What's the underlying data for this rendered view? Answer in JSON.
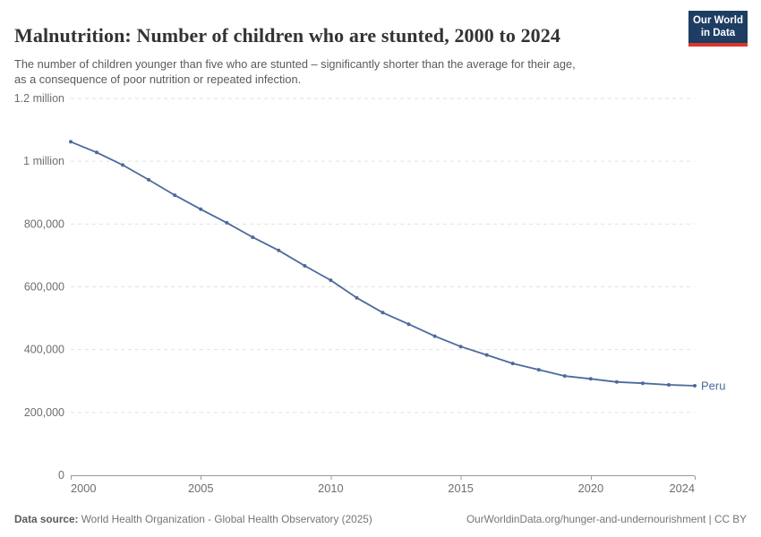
{
  "header": {
    "title": "Malnutrition: Number of children who are stunted, 2000 to 2024",
    "subtitle_lines": [
      "The number of children younger than five who are stunted – significantly shorter than the average for their age,",
      "as a consequence of poor nutrition or repeated infection."
    ],
    "logo": {
      "line1": "Our World",
      "line2": "in Data"
    }
  },
  "footer": {
    "source_label": "Data source:",
    "source_text": " World Health Organization - Global Health Observatory (2025)",
    "attribution": "OurWorldinData.org/hunger-and-undernourishment | CC BY"
  },
  "colors": {
    "series": "#4c6a9c",
    "grid": "#e2e2e2",
    "axis": "#999999",
    "tick_label": "#6e6e6e",
    "logo_bg": "#1d3d63",
    "logo_stripe": "#dc352c"
  },
  "chart_data": {
    "type": "line",
    "title": "Malnutrition: Number of children who are stunted, 2000 to 2024",
    "xlabel": "",
    "ylabel": "",
    "xlim": [
      2000,
      2024
    ],
    "ylim": [
      0,
      1200000
    ],
    "grid": "dashed-horizontal",
    "legend_position": "end-of-line-label",
    "series": [
      {
        "name": "Peru",
        "color": "#4c6a9c",
        "x": [
          2000,
          2001,
          2002,
          2003,
          2004,
          2005,
          2006,
          2007,
          2008,
          2009,
          2010,
          2011,
          2012,
          2013,
          2014,
          2015,
          2016,
          2017,
          2018,
          2019,
          2020,
          2021,
          2022,
          2023,
          2024
        ],
        "values": [
          1062000,
          1028000,
          988000,
          941000,
          892000,
          847000,
          804000,
          758000,
          716000,
          667000,
          621000,
          565000,
          518000,
          481000,
          443000,
          410000,
          383000,
          356000,
          336000,
          316000,
          307000,
          297000,
          293000,
          288000,
          285000
        ]
      }
    ],
    "x_ticks": [
      {
        "year": 2000,
        "label": "2000",
        "align": "start"
      },
      {
        "year": 2005,
        "label": "2005",
        "align": "middle"
      },
      {
        "year": 2010,
        "label": "2010",
        "align": "middle"
      },
      {
        "year": 2015,
        "label": "2015",
        "align": "middle"
      },
      {
        "year": 2020,
        "label": "2020",
        "align": "middle"
      },
      {
        "year": 2024,
        "label": "2024",
        "align": "end"
      }
    ],
    "y_ticks": [
      {
        "value": 0,
        "label": "0"
      },
      {
        "value": 200000,
        "label": "200,000"
      },
      {
        "value": 400000,
        "label": "400,000"
      },
      {
        "value": 600000,
        "label": "600,000"
      },
      {
        "value": 800000,
        "label": "800,000"
      },
      {
        "value": 1000000,
        "label": "1 million"
      },
      {
        "value": 1200000,
        "label": "1.2 million"
      }
    ]
  }
}
